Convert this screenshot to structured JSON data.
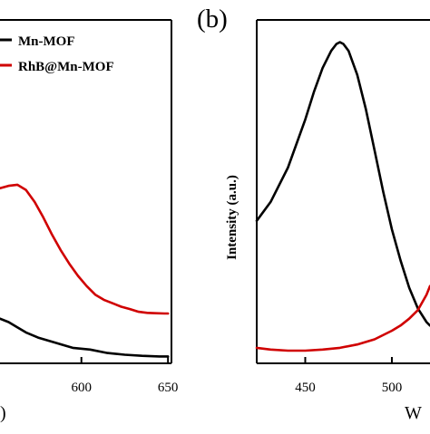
{
  "chart_data": [
    {
      "type": "line",
      "panel_label": "",
      "xlabel": "",
      "ylabel": "",
      "x_ticks": [
        600,
        650
      ],
      "xlim": [
        553,
        652
      ],
      "ylim": [
        0,
        1
      ],
      "legend_placement": "top-right",
      "grid": false,
      "series": [
        {
          "name": "Mn-MOF",
          "color": "#000000",
          "x": [
            553,
            558,
            563,
            568,
            575,
            585,
            595,
            605,
            615,
            625,
            635,
            645,
            650
          ],
          "y": [
            0.13,
            0.12,
            0.105,
            0.09,
            0.075,
            0.06,
            0.045,
            0.04,
            0.03,
            0.025,
            0.022,
            0.02,
            0.02
          ]
        },
        {
          "name": "RhB@Mn-MOF",
          "color": "#d00000",
          "x": [
            553,
            558,
            563,
            568,
            573,
            578,
            583,
            588,
            593,
            598,
            603,
            608,
            613,
            618,
            623,
            628,
            633,
            638,
            643,
            648,
            650
          ],
          "y": [
            0.51,
            0.517,
            0.52,
            0.505,
            0.47,
            0.425,
            0.375,
            0.33,
            0.29,
            0.255,
            0.225,
            0.2,
            0.185,
            0.175,
            0.165,
            0.158,
            0.15,
            0.147,
            0.146,
            0.145,
            0.145
          ]
        }
      ],
      "axis_label_fragment": ")"
    },
    {
      "type": "line",
      "panel_label": "(b)",
      "xlabel": "W",
      "ylabel": "Intensity (a.u.)",
      "x_ticks": [
        450,
        500
      ],
      "xlim": [
        422,
        522
      ],
      "ylim": [
        0,
        1
      ],
      "grid": false,
      "series": [
        {
          "name": "Mn-MOF",
          "color": "#000000",
          "x": [
            422,
            430,
            440,
            450,
            455,
            460,
            465,
            468,
            470,
            472,
            475,
            480,
            485,
            490,
            495,
            500,
            505,
            510,
            515,
            520,
            522
          ],
          "y": [
            0.415,
            0.47,
            0.57,
            0.71,
            0.79,
            0.86,
            0.91,
            0.93,
            0.935,
            0.93,
            0.91,
            0.84,
            0.74,
            0.62,
            0.5,
            0.39,
            0.3,
            0.22,
            0.16,
            0.12,
            0.11
          ]
        },
        {
          "name": "RhB@Mn-MOF",
          "color": "#d00000",
          "x": [
            422,
            430,
            440,
            450,
            460,
            470,
            480,
            490,
            500,
            505,
            510,
            515,
            520,
            522
          ],
          "y": [
            0.045,
            0.04,
            0.037,
            0.037,
            0.04,
            0.045,
            0.055,
            0.07,
            0.095,
            0.11,
            0.13,
            0.155,
            0.2,
            0.225
          ]
        }
      ]
    }
  ]
}
